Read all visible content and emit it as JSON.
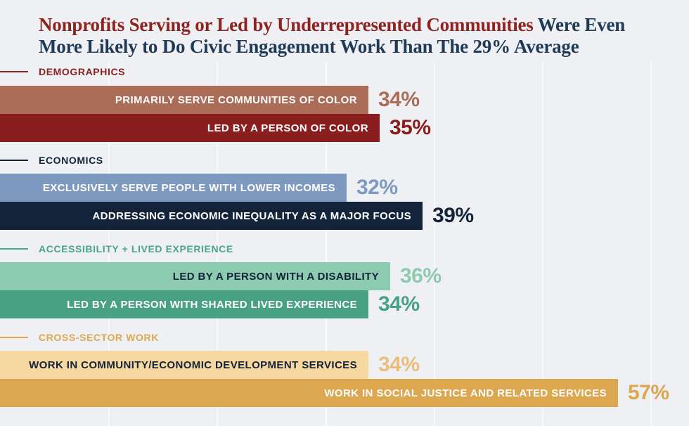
{
  "title": {
    "highlight": "Nonprofits Serving or Led by Underrepresented Communities",
    "rest_line1": " Were Even",
    "line2": "More Likely to Do Civic Engagement Work Than The 29% Average",
    "highlight_color": "#8e2320",
    "rest_color": "#1e3a57"
  },
  "chart_data": {
    "type": "bar",
    "orientation": "horizontal",
    "unit": "%",
    "average_reference_percent": 29,
    "xlim": [
      0,
      63.5
    ],
    "grid_interval_percent": 10,
    "grid_line_count": 6,
    "background_color": "#eff0f3",
    "gridline_color": "#f9fafc",
    "groups": [
      {
        "label": "DEMOGRAPHICS",
        "color": "#8b2121",
        "bars": [
          {
            "label": "PRIMARILY SERVE COMMUNITIES OF COLOR",
            "value": 34,
            "display": "34%",
            "bar_color": "#ab6c58",
            "label_color": "#ffffff",
            "value_color": "#ab6c58"
          },
          {
            "label": "LED BY A PERSON OF COLOR",
            "value": 35,
            "display": "35%",
            "bar_color": "#8a1e1e",
            "label_color": "#ffffff",
            "value_color": "#8a1e1e"
          }
        ]
      },
      {
        "label": "ECONOMICS",
        "color": "#13233a",
        "bars": [
          {
            "label": "EXCLUSIVELY SERVE PEOPLE WITH LOWER INCOMES",
            "value": 32,
            "display": "32%",
            "bar_color": "#7d99c0",
            "label_color": "#ffffff",
            "value_color": "#7d99c0"
          },
          {
            "label": "ADDRESSING ECONOMIC INEQUALITY AS A MAJOR FOCUS",
            "value": 39,
            "display": "39%",
            "bar_color": "#13233a",
            "label_color": "#ffffff",
            "value_color": "#13233a"
          }
        ]
      },
      {
        "label": "ACCESSIBILITY + LIVED EXPERIENCE",
        "color": "#49a585",
        "bars": [
          {
            "label": "LED BY A PERSON WITH A DISABILITY",
            "value": 36,
            "display": "36%",
            "bar_color": "#8ccbb0",
            "label_color": "#13233a",
            "value_color": "#8ccbb0"
          },
          {
            "label": "LED BY A PERSON WITH SHARED LIVED EXPERIENCE",
            "value": 34,
            "display": "34%",
            "bar_color": "#49a183",
            "label_color": "#ffffff",
            "value_color": "#49a183"
          }
        ]
      },
      {
        "label": "CROSS-SECTOR WORK",
        "color": "#dca74f",
        "bars": [
          {
            "label": "WORK IN COMMUNITY/ECONOMIC DEVELOPMENT SERVICES",
            "value": 34,
            "display": "34%",
            "bar_color": "#f6d8a0",
            "label_color": "#13233a",
            "value_color": "#e9be7e"
          },
          {
            "label": "WORK IN SOCIAL JUSTICE AND RELATED SERVICES",
            "value": 57,
            "display": "57%",
            "bar_color": "#dca74f",
            "label_color": "#ffffff",
            "value_color": "#dca74f"
          }
        ]
      }
    ]
  }
}
